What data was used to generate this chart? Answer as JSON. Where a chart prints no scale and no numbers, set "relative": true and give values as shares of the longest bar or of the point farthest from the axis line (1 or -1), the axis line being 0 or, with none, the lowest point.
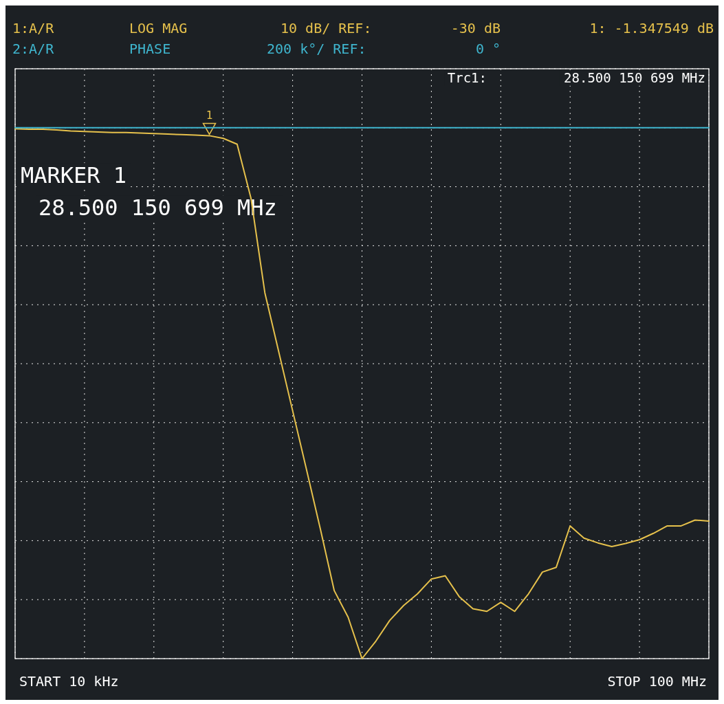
{
  "chart_data": {
    "type": "line",
    "relative": true,
    "categories": [
      null,
      null,
      null,
      null,
      null,
      null,
      null,
      null,
      null,
      null,
      null,
      null,
      null,
      null,
      null,
      null,
      null,
      null,
      null,
      null,
      null,
      null,
      null,
      null,
      null,
      null,
      null,
      null,
      null,
      null,
      null,
      null,
      null,
      null,
      null,
      null,
      null,
      null,
      null,
      null,
      null,
      null,
      null,
      null,
      null,
      null,
      null,
      null,
      null,
      null,
      null
    ],
    "grid": true,
    "marker": "none",
    "line_style": "solid",
    "series": [
      {
        "color": "#e6c14c",
        "values": [
          0.998,
          0.997,
          0.997,
          0.996,
          0.994,
          0.993,
          0.992,
          0.991,
          0.991,
          0.99,
          0.989,
          0.988,
          0.987,
          0.986,
          0.985,
          0.98,
          0.969,
          0.867,
          0.689,
          0.578,
          0.467,
          0.356,
          0.244,
          0.128,
          0.078,
          0,
          0.033,
          0.072,
          0.1,
          0.122,
          0.15,
          0.156,
          0.117,
          0.094,
          0.089,
          0.106,
          0.089,
          0.122,
          0.163,
          0.172,
          0.25,
          0.227,
          0.218,
          0.211,
          0.217,
          0.224,
          0.236,
          0.25,
          0.25,
          0.261,
          0.259
        ]
      },
      {
        "color": "#3fb6cf",
        "values": [
          1,
          1,
          1,
          1,
          1,
          1,
          1,
          1,
          1,
          1,
          1,
          1,
          1,
          1,
          1,
          1,
          1,
          1,
          1,
          1,
          1,
          1,
          1,
          1,
          1,
          1,
          1,
          1,
          1,
          1,
          1,
          1,
          1,
          1,
          1,
          1,
          1,
          1,
          1,
          1,
          1,
          1,
          1,
          1,
          1,
          1,
          1,
          1,
          1,
          1,
          1
        ]
      }
    ],
    "annotations": [
      "1:A/R",
      "LOG MAG",
      "10 dB/ REF:",
      "-30 dB",
      "1: -1.347549 dB",
      "2:A/R",
      "PHASE",
      "200 k°/ REF:",
      "0 °",
      "Trc1:",
      "28.500 150 699 MHz",
      "START 10 kHz",
      "STOP 100 MHz",
      "MARKER 1",
      "28.500 150 699 MHz",
      "1"
    ]
  }
}
